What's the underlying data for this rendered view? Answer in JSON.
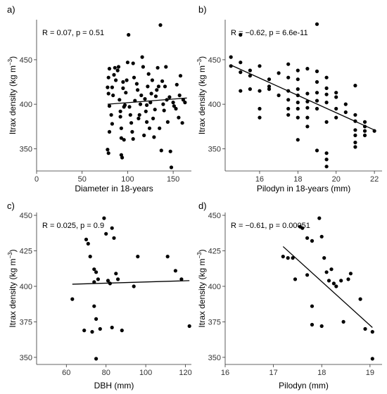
{
  "chart_data": [
    {
      "type": "scatter",
      "panel": "a)",
      "xlabel": "Diameter in 18-years",
      "ylabel_main": "Itrax density (kg m",
      "ylabel_sup": "−3",
      "ylabel_close": ")",
      "stat": "R = 0.07, p = 0.51",
      "xlim": [
        0,
        170
      ],
      "ylim": [
        325,
        495
      ],
      "xticks": [
        0,
        50,
        100,
        150
      ],
      "yticks": [
        350,
        400,
        450
      ],
      "fit": [
        [
          78,
          400
        ],
        [
          165,
          407
        ]
      ],
      "points": [
        [
          78,
          419
        ],
        [
          79,
          412
        ],
        [
          80,
          398
        ],
        [
          79,
          430
        ],
        [
          80,
          440
        ],
        [
          80,
          369
        ],
        [
          78,
          349
        ],
        [
          79,
          345
        ],
        [
          82,
          388
        ],
        [
          83,
          378
        ],
        [
          83,
          419
        ],
        [
          84,
          410
        ],
        [
          85,
          433
        ],
        [
          86,
          441
        ],
        [
          87,
          427
        ],
        [
          89,
          438
        ],
        [
          90,
          442
        ],
        [
          91,
          405
        ],
        [
          92,
          392
        ],
        [
          92,
          386
        ],
        [
          93,
          373
        ],
        [
          93,
          362
        ],
        [
          93,
          343
        ],
        [
          94,
          340
        ],
        [
          95,
          425
        ],
        [
          95,
          418
        ],
        [
          96,
          360
        ],
        [
          96,
          397
        ],
        [
          97,
          399
        ],
        [
          98,
          413
        ],
        [
          99,
          427
        ],
        [
          100,
          447
        ],
        [
          101,
          478
        ],
        [
          102,
          397
        ],
        [
          103,
          388
        ],
        [
          104,
          379
        ],
        [
          105,
          369
        ],
        [
          106,
          361
        ],
        [
          106,
          446
        ],
        [
          107,
          430
        ],
        [
          108,
          404
        ],
        [
          110,
          423
        ],
        [
          111,
          416
        ],
        [
          112,
          384
        ],
        [
          113,
          388
        ],
        [
          114,
          400
        ],
        [
          115,
          410
        ],
        [
          116,
          453
        ],
        [
          117,
          442
        ],
        [
          118,
          365
        ],
        [
          119,
          406
        ],
        [
          120,
          392
        ],
        [
          121,
          380
        ],
        [
          121,
          399
        ],
        [
          122,
          420
        ],
        [
          123,
          434
        ],
        [
          124,
          373
        ],
        [
          125,
          402
        ],
        [
          126,
          412
        ],
        [
          127,
          427
        ],
        [
          128,
          384
        ],
        [
          129,
          363
        ],
        [
          130,
          394
        ],
        [
          131,
          409
        ],
        [
          132,
          416
        ],
        [
          133,
          441
        ],
        [
          134,
          420
        ],
        [
          135,
          373
        ],
        [
          136,
          489
        ],
        [
          137,
          348
        ],
        [
          138,
          426
        ],
        [
          139,
          400
        ],
        [
          140,
          393
        ],
        [
          141,
          420
        ],
        [
          142,
          442
        ],
        [
          143,
          405
        ],
        [
          144,
          380
        ],
        [
          146,
          408
        ],
        [
          147,
          347
        ],
        [
          148,
          329
        ],
        [
          150,
          402
        ],
        [
          151,
          398
        ],
        [
          153,
          395
        ],
        [
          154,
          422
        ],
        [
          156,
          385
        ],
        [
          157,
          410
        ],
        [
          158,
          432
        ],
        [
          160,
          379
        ],
        [
          161,
          405
        ],
        [
          163,
          402
        ]
      ]
    },
    {
      "type": "scatter",
      "panel": "b)",
      "xlabel": "Pilodyn in 18-years (mm)",
      "ylabel_main": "Itrax density (kg m",
      "ylabel_sup": "−3",
      "ylabel_close": ")",
      "stat": "R = −0.62, p = 6.6e-11",
      "xlim": [
        14.2,
        22.4
      ],
      "ylim": [
        325,
        495
      ],
      "xticks": [
        16,
        18,
        20,
        22
      ],
      "yticks": [
        350,
        400,
        450
      ],
      "fit": [
        [
          14.5,
          444
        ],
        [
          22,
          371
        ]
      ],
      "points": [
        [
          14.5,
          453
        ],
        [
          14.5,
          443
        ],
        [
          15,
          415
        ],
        [
          15,
          436
        ],
        [
          15,
          447
        ],
        [
          15,
          478
        ],
        [
          15.5,
          438
        ],
        [
          15.5,
          432
        ],
        [
          15.5,
          417
        ],
        [
          16,
          395
        ],
        [
          16,
          385
        ],
        [
          16,
          415
        ],
        [
          16,
          443
        ],
        [
          16.5,
          428
        ],
        [
          16.5,
          417
        ],
        [
          16.5,
          420
        ],
        [
          17,
          410
        ],
        [
          17,
          435
        ],
        [
          17.5,
          445
        ],
        [
          17.5,
          430
        ],
        [
          17.5,
          415
        ],
        [
          17.5,
          405
        ],
        [
          17.5,
          395
        ],
        [
          17.5,
          388
        ],
        [
          18,
          438
        ],
        [
          18,
          428
        ],
        [
          18,
          417
        ],
        [
          18,
          410
        ],
        [
          18,
          402
        ],
        [
          18,
          395
        ],
        [
          18,
          385
        ],
        [
          18,
          360
        ],
        [
          18.5,
          440
        ],
        [
          18.5,
          412
        ],
        [
          18.5,
          403
        ],
        [
          18.5,
          396
        ],
        [
          18.5,
          385
        ],
        [
          18.5,
          375
        ],
        [
          19,
          437
        ],
        [
          19,
          425
        ],
        [
          19,
          413
        ],
        [
          19,
          404
        ],
        [
          19,
          395
        ],
        [
          19,
          490
        ],
        [
          19,
          348
        ],
        [
          19.5,
          430
        ],
        [
          19.5,
          418
        ],
        [
          19.5,
          411
        ],
        [
          19.5,
          402
        ],
        [
          19.5,
          380
        ],
        [
          19.5,
          345
        ],
        [
          19.5,
          338
        ],
        [
          19.5,
          330
        ],
        [
          20,
          413
        ],
        [
          20,
          408
        ],
        [
          20,
          395
        ],
        [
          20,
          385
        ],
        [
          20.5,
          400
        ],
        [
          20.5,
          391
        ],
        [
          21,
          421
        ],
        [
          21,
          388
        ],
        [
          21,
          381
        ],
        [
          21,
          371
        ],
        [
          21,
          365
        ],
        [
          21,
          357
        ],
        [
          21,
          352
        ],
        [
          21.5,
          380
        ],
        [
          21.5,
          375
        ],
        [
          21.5,
          370
        ],
        [
          21.5,
          365
        ],
        [
          22,
          370
        ]
      ]
    },
    {
      "type": "scatter",
      "panel": "c)",
      "xlabel": "DBH (mm)",
      "ylabel_main": "Itrax density (kg m",
      "ylabel_sup": "−3",
      "ylabel_close": ")",
      "stat": "R = 0.025, p = 0.9",
      "xlim": [
        45,
        123
      ],
      "ylim": [
        345,
        452
      ],
      "xticks": [
        60,
        80,
        100,
        120
      ],
      "yticks": [
        350,
        375,
        400,
        425,
        450
      ],
      "fit": [
        [
          63,
          401.5
        ],
        [
          122,
          404
        ]
      ],
      "points": [
        [
          63,
          391
        ],
        [
          69,
          369
        ],
        [
          70,
          433
        ],
        [
          71,
          430
        ],
        [
          72,
          421
        ],
        [
          73,
          368
        ],
        [
          74,
          412
        ],
        [
          74,
          403
        ],
        [
          74,
          386
        ],
        [
          75,
          410
        ],
        [
          75,
          377
        ],
        [
          75,
          349
        ],
        [
          76,
          405
        ],
        [
          77,
          370
        ],
        [
          79,
          448
        ],
        [
          80,
          437
        ],
        [
          81,
          404
        ],
        [
          82,
          402
        ],
        [
          83,
          441
        ],
        [
          83,
          371
        ],
        [
          84,
          434
        ],
        [
          85,
          409
        ],
        [
          86,
          405
        ],
        [
          88,
          369
        ],
        [
          94,
          400
        ],
        [
          96,
          421
        ],
        [
          111,
          421
        ],
        [
          115,
          411
        ],
        [
          118,
          405
        ],
        [
          122,
          372
        ]
      ]
    },
    {
      "type": "scatter",
      "panel": "d)",
      "xlabel": "Pilodyn (mm)",
      "ylabel_main": "Itrax density (kg m",
      "ylabel_sup": "−3",
      "ylabel_close": ")",
      "stat": "R = −0.61, p = 0.00051",
      "xlim": [
        16,
        19.25
      ],
      "ylim": [
        345,
        452
      ],
      "xticks": [
        16,
        17,
        18,
        19
      ],
      "yticks": [
        350,
        375,
        400,
        425,
        450
      ],
      "fit": [
        [
          17.2,
          428
        ],
        [
          19.05,
          371
        ]
      ],
      "points": [
        [
          17.2,
          421
        ],
        [
          17.3,
          420
        ],
        [
          17.4,
          420
        ],
        [
          17.45,
          405
        ],
        [
          17.55,
          442
        ],
        [
          17.6,
          441
        ],
        [
          17.7,
          434
        ],
        [
          17.8,
          432
        ],
        [
          17.7,
          408
        ],
        [
          17.8,
          386
        ],
        [
          17.8,
          373
        ],
        [
          17.95,
          448
        ],
        [
          18,
          435
        ],
        [
          18,
          372
        ],
        [
          18.05,
          420
        ],
        [
          18.1,
          410
        ],
        [
          18.15,
          404
        ],
        [
          18.2,
          412
        ],
        [
          18.25,
          402
        ],
        [
          18.3,
          400
        ],
        [
          18.4,
          404
        ],
        [
          18.45,
          375
        ],
        [
          18.55,
          405
        ],
        [
          18.6,
          409
        ],
        [
          18.8,
          391
        ],
        [
          18.9,
          370
        ],
        [
          19.05,
          368
        ],
        [
          19.05,
          349
        ]
      ]
    }
  ]
}
